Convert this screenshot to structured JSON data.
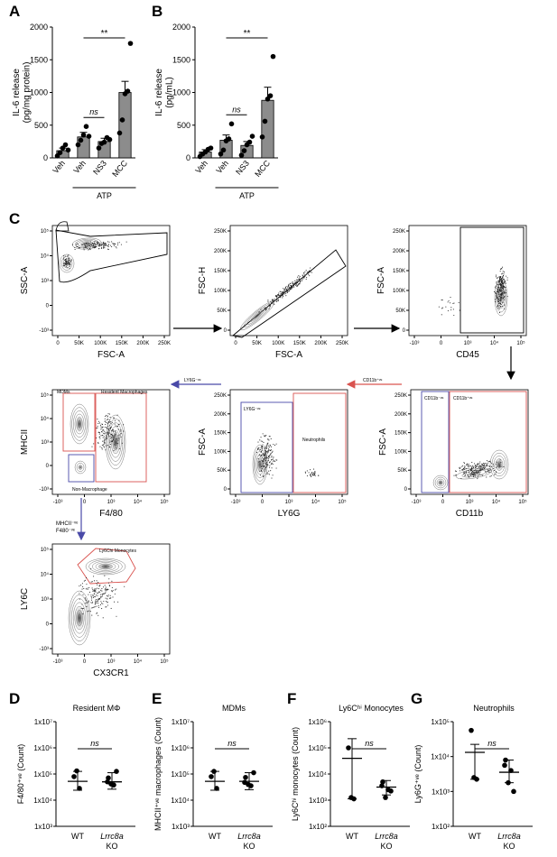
{
  "panel_labels": {
    "A": "A",
    "B": "B",
    "C": "C",
    "D": "D",
    "E": "E",
    "F": "F",
    "G": "G"
  },
  "chart_data": [
    {
      "id": "A",
      "type": "bar",
      "categories": [
        "Veh",
        "Veh",
        "NS3",
        "MCC"
      ],
      "group_label": "ATP",
      "ylabel": "IL-6 release\n(pg/mg protein)",
      "yticks": [
        "0",
        "500",
        "1000",
        "1500",
        "2000"
      ],
      "ylim": [
        0,
        2000
      ],
      "values": [
        110,
        320,
        250,
        1000
      ],
      "errors": [
        40,
        70,
        50,
        170
      ],
      "points": [
        [
          30,
          80,
          150,
          200,
          120
        ],
        [
          200,
          270,
          350,
          480,
          330
        ],
        [
          150,
          220,
          240,
          310,
          280
        ],
        [
          380,
          580,
          980,
          1020,
          1750
        ]
      ],
      "annotations": [
        {
          "text": "**",
          "from": 1,
          "to": 3
        },
        {
          "text": "ns",
          "from": 1,
          "to": 2
        }
      ]
    },
    {
      "id": "B",
      "type": "bar",
      "categories": [
        "Veh",
        "Veh",
        "NS3",
        "MCC"
      ],
      "group_label": "ATP",
      "ylabel": "IL-6 release\n(pg/mL)",
      "yticks": [
        "0",
        "500",
        "1000",
        "1500",
        "2000"
      ],
      "ylim": [
        0,
        2000
      ],
      "values": [
        90,
        270,
        190,
        880
      ],
      "errors": [
        35,
        80,
        60,
        200
      ],
      "points": [
        [
          20,
          60,
          90,
          130,
          150
        ],
        [
          60,
          120,
          260,
          290,
          520
        ],
        [
          40,
          110,
          200,
          240,
          330
        ],
        [
          320,
          560,
          900,
          950,
          1550
        ]
      ],
      "annotations": [
        {
          "text": "**",
          "from": 1,
          "to": 3
        },
        {
          "text": "ns",
          "from": 1,
          "to": 2
        }
      ]
    },
    {
      "id": "D",
      "type": "scatter",
      "title": "Resident MΦ",
      "ylabel": "F4/80⁺ᵛᵉ (Count)",
      "yticks": [
        "1x10³",
        "1x10⁴",
        "1x10⁵",
        "1x10⁶",
        "1x10⁷"
      ],
      "ylim_log10": [
        3,
        7
      ],
      "categories": [
        "WT",
        "Lrrc8a KO"
      ],
      "points": [
        [
          4.9,
          4.45,
          5.12
        ],
        [
          4.85,
          4.58,
          4.62,
          5.1,
          4.7
        ]
      ],
      "means": [
        4.72,
        4.7
      ],
      "error": [
        [
          4.38,
          5.1
        ],
        [
          4.42,
          5.05
        ]
      ],
      "annotations": [
        {
          "text": "ns"
        }
      ]
    },
    {
      "id": "E",
      "type": "scatter",
      "title": "MDMs",
      "ylabel": "MHCII⁺ᵛᵉ macrophages (Count)",
      "yticks": [
        "1x10³",
        "1x10⁴",
        "1x10⁵",
        "1x10⁶",
        "1x10⁷"
      ],
      "ylim_log10": [
        3,
        7
      ],
      "categories": [
        "WT",
        "Lrrc8a KO"
      ],
      "points": [
        [
          4.9,
          4.45,
          5.1
        ],
        [
          4.87,
          4.55,
          4.6,
          5.05,
          4.68
        ]
      ],
      "means": [
        4.72,
        4.72
      ],
      "error": [
        [
          4.38,
          5.1
        ],
        [
          4.4,
          5.05
        ]
      ],
      "annotations": [
        {
          "text": "ns"
        }
      ]
    },
    {
      "id": "F",
      "type": "scatter",
      "title": "Ly6Cʰⁱ Monocytes",
      "ylabel": "Ly6Cʰⁱ monocytes (Count)",
      "yticks": [
        "1x10²",
        "1x10³",
        "1x10⁴",
        "1x10⁵",
        "1x10⁶"
      ],
      "ylim_log10": [
        2,
        6
      ],
      "categories": [
        "WT",
        "Lrrc8a KO"
      ],
      "points": [
        [
          5.0,
          3.05,
          3.1
        ],
        [
          3.7,
          3.4,
          3.1,
          3.35,
          3.55
        ]
      ],
      "means": [
        4.6,
        3.5
      ],
      "error": [
        [
          3.05,
          5.35
        ],
        [
          3.2,
          3.75
        ]
      ],
      "annotations": [
        {
          "text": "ns"
        }
      ]
    },
    {
      "id": "G",
      "type": "scatter",
      "title": "Neutrophils",
      "ylabel": "Ly6G⁺ᵛᵉ (Count)",
      "yticks": [
        "1x10²",
        "1x10³",
        "1x10⁴",
        "1x10⁵"
      ],
      "ylim_log10": [
        2,
        5
      ],
      "categories": [
        "WT",
        "Lrrc8a KO"
      ],
      "points": [
        [
          4.75,
          3.35,
          3.4
        ],
        [
          3.9,
          3.6,
          3.25,
          3.0,
          3.75
        ]
      ],
      "means": [
        4.12,
        3.55
      ],
      "error": [
        [
          3.35,
          4.35
        ],
        [
          3.25,
          3.9
        ]
      ],
      "annotations": [
        {
          "text": "ns"
        }
      ]
    }
  ],
  "flow": {
    "p1": {
      "xlabel": "FSC-A",
      "ylabel": "SSC-A",
      "xticks": [
        "0",
        "50K",
        "100K",
        "150K",
        "200K",
        "250K"
      ],
      "yticks": [
        "10⁵",
        "10⁴",
        "10³",
        "0",
        "-10³"
      ]
    },
    "p2": {
      "xlabel": "FSC-A",
      "ylabel": "FSC-H",
      "xticks": [
        "0",
        "50K",
        "100K",
        "150K",
        "200K",
        "250K"
      ],
      "yticks": [
        "250K",
        "200K",
        "150K",
        "100K",
        "50K",
        "0"
      ]
    },
    "p3": {
      "xlabel": "CD45",
      "ylabel": "FSC-A",
      "xticks": [
        "-10³",
        "0",
        "10³",
        "10⁴",
        "10⁵"
      ],
      "yticks": [
        "250K",
        "200K",
        "150K",
        "100K",
        "50K",
        "0"
      ]
    },
    "p4": {
      "xlabel": "CD11b",
      "ylabel": "FSC-A",
      "xticks": [
        "-10³",
        "0",
        "10³",
        "10⁴",
        "10⁵"
      ],
      "yticks": [
        "250K",
        "200K",
        "150K",
        "100K",
        "50K",
        "0"
      ],
      "gate1": "CD11b⁻ᵛᵉ",
      "gate2": "CD11b⁺ᵛᵉ",
      "arrow": "CD11b⁺ᵛᵉ"
    },
    "p5": {
      "xlabel": "LY6G",
      "ylabel": "FSC-A",
      "xticks": [
        "-10³",
        "0",
        "10³",
        "10⁴",
        "10⁵"
      ],
      "yticks": [
        "250K",
        "200K",
        "150K",
        "100K",
        "50K",
        "0"
      ],
      "gate1": "LY6G⁻ᵛᵉ",
      "gate2": "Neutrophils",
      "arrow": "LY6G⁻ᵛᵉ"
    },
    "p6": {
      "xlabel": "F4/80",
      "ylabel": "MHCII",
      "xticks": [
        "-10³",
        "0",
        "10³",
        "10⁴",
        "10⁵"
      ],
      "yticks": [
        "10⁵",
        "10⁴",
        "10³",
        "0",
        "-10³"
      ],
      "gate1": "MDMs",
      "gate2": "Resident Macrophages",
      "gate3": "Non-Macrophage",
      "arrow1": "MHCII⁻ᵛᵉ",
      "arrow2": "F480⁻ᵛᵉ"
    },
    "p7": {
      "xlabel": "CX3CR1",
      "ylabel": "LY6C",
      "xticks": [
        "-10³",
        "0",
        "10³",
        "10⁴",
        "10⁵"
      ],
      "yticks": [
        "10⁵",
        "10⁴",
        "10³",
        "0",
        "-10³"
      ],
      "gate1": "Ly6Chi Monocytes"
    }
  },
  "colors": {
    "gate_red": "#d9534f",
    "gate_blue": "#4a4aa8",
    "bar": "#8c8c8c"
  }
}
